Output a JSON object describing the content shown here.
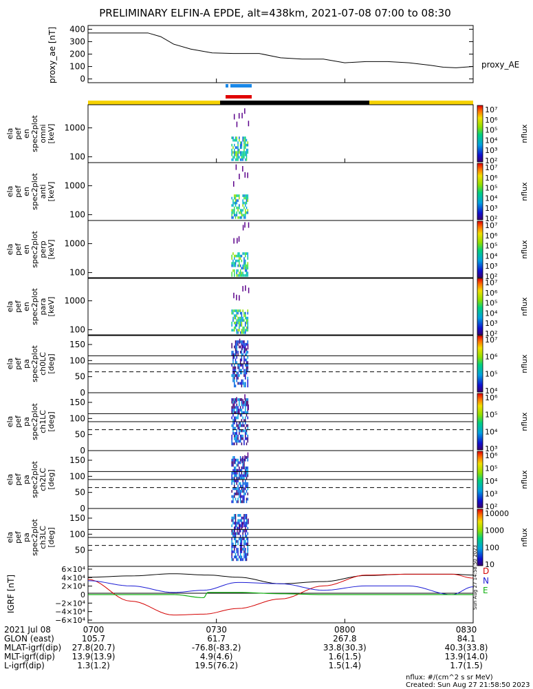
{
  "title": "PRELIMINARY ELFIN-A EPDE, alt=438km, 2021-07-08 07:00 to 08:30",
  "ae_panel": {
    "ylabel": "proxy_ae\n[nT]",
    "series_label": "proxy_AE",
    "yticks": [
      "400",
      "300",
      "200",
      "100",
      "0"
    ]
  },
  "spec_panels": [
    {
      "ylabel": [
        "ela",
        "pef",
        "en",
        "spec2plot",
        "omni",
        "[keV]"
      ],
      "yticks": [
        "1000",
        "100"
      ],
      "zticks": [
        "10⁷",
        "10⁶",
        "10⁵",
        "10⁴",
        "10³",
        "10²"
      ],
      "zlabel": "nflux"
    },
    {
      "ylabel": [
        "ela",
        "pef",
        "en",
        "spec2plot",
        "anti",
        "[keV]"
      ],
      "yticks": [
        "1000",
        "100"
      ],
      "zticks": [
        "10⁷",
        "10⁶",
        "10⁵",
        "10⁴",
        "10³",
        "10²"
      ],
      "zlabel": "nflux"
    },
    {
      "ylabel": [
        "ela",
        "pef",
        "en",
        "spec2plot",
        "perp",
        "[keV]"
      ],
      "yticks": [
        "1000",
        "100"
      ],
      "zticks": [
        "10⁷",
        "10⁶",
        "10⁵",
        "10⁴",
        "10³",
        "10²"
      ],
      "zlabel": "nflux"
    },
    {
      "ylabel": [
        "ela",
        "pef",
        "en",
        "spec2plot",
        "para",
        "[keV]"
      ],
      "yticks": [
        "1000",
        "100"
      ],
      "zticks": [
        "10⁷",
        "10⁶",
        "10⁵",
        "10⁴",
        "10³",
        "10²"
      ],
      "zlabel": "nflux"
    },
    {
      "ylabel": [
        "ela",
        "pef",
        "pa",
        "spec2plot",
        "ch0LC",
        "[deg]"
      ],
      "yticks": [
        "150",
        "100",
        "50",
        "0"
      ],
      "zticks": [
        "10⁷",
        "10⁶",
        "10⁵",
        "10⁴"
      ],
      "zlabel": "nflux"
    },
    {
      "ylabel": [
        "ela",
        "pef",
        "pa",
        "spec2plot",
        "ch1LC",
        "[deg]"
      ],
      "yticks": [
        "150",
        "100",
        "50",
        "0"
      ],
      "zticks": [
        "10⁶",
        "10⁵",
        "10⁴",
        "10³"
      ],
      "zlabel": "nflux"
    },
    {
      "ylabel": [
        "ela",
        "pef",
        "pa",
        "spec2plot",
        "ch2LC",
        "[deg]"
      ],
      "yticks": [
        "150",
        "100",
        "50",
        "0"
      ],
      "zticks": [
        "10⁶",
        "10⁵",
        "10⁴",
        "10³",
        "10²"
      ],
      "zlabel": "nflux"
    },
    {
      "ylabel": [
        "ela",
        "pef",
        "pa",
        "spec2plot",
        "ch3LC",
        "[deg]"
      ],
      "yticks": [
        "150",
        "100",
        "50"
      ],
      "zticks": [
        "10000",
        "1000",
        "100",
        "10"
      ],
      "zlabel": "nflux"
    }
  ],
  "igrf_panel": {
    "ylabel": "IGRF\n[nT]",
    "yticks": [
      "6×10⁴",
      "4×10⁴",
      "2×10⁴",
      "0",
      "−2×10⁴",
      "−4×10⁴",
      "−6×10⁴"
    ],
    "legend": [
      {
        "name": "D",
        "color": "#d40000"
      },
      {
        "name": "N",
        "color": "#1a1ad4"
      },
      {
        "name": "E",
        "color": "#10b010"
      }
    ]
  },
  "chart_data": {
    "type": "line",
    "x_ticks": [
      "0700",
      "0730",
      "0800",
      "0830"
    ],
    "proxy_ae": {
      "time_min": [
        0,
        5,
        10,
        14,
        17,
        20,
        24,
        29,
        34,
        40,
        45,
        50,
        55,
        60,
        65,
        70,
        75,
        80,
        83,
        86,
        90
      ],
      "values": [
        370,
        370,
        370,
        370,
        340,
        280,
        240,
        210,
        205,
        205,
        170,
        160,
        160,
        130,
        140,
        140,
        130,
        110,
        95,
        90,
        100
      ]
    },
    "igrf": {
      "D": {
        "time_min": [
          0,
          10,
          20,
          27,
          35,
          45,
          55,
          65,
          75,
          85,
          90
        ],
        "values": [
          35000,
          -15000,
          -47000,
          -45000,
          -32000,
          -10000,
          20000,
          45000,
          47000,
          47000,
          38000
        ]
      },
      "N": {
        "time_min": [
          0,
          10,
          20,
          27,
          35,
          45,
          55,
          65,
          75,
          85,
          90
        ],
        "values": [
          32000,
          20000,
          5000,
          10000,
          28000,
          25000,
          10000,
          20000,
          20000,
          0,
          18000
        ]
      },
      "E": {
        "time_min": [
          0,
          10,
          20,
          27,
          28,
          35,
          45,
          55,
          65,
          75,
          90
        ],
        "values": [
          0,
          0,
          0,
          -7000,
          5000,
          5000,
          2000,
          0,
          0,
          0,
          0
        ]
      },
      "total": {
        "time_min": [
          0,
          10,
          20,
          28,
          35,
          45,
          55,
          65,
          75,
          85,
          90
        ],
        "values": [
          40000,
          43000,
          48000,
          45000,
          40000,
          25000,
          30000,
          44000,
          47000,
          47000,
          45000
        ]
      }
    },
    "burst_x_min": 33.5,
    "burst_width_min": 4
  },
  "footer": {
    "rows": [
      {
        "label": "2021 Jul 08",
        "vals": [
          "0700",
          "0730",
          "0800",
          "0830"
        ]
      },
      {
        "label": "GLON (east)",
        "vals": [
          "105.7",
          "61.7",
          "267.8",
          "84.1"
        ]
      },
      {
        "label": "MLAT-igrf(dip)",
        "vals": [
          "27.8(20.7)",
          "-76.8(-83.2)",
          "33.8(30.3)",
          "40.3(33.8)"
        ]
      },
      {
        "label": "MLT-igrf(dip)",
        "vals": [
          "13.9(13.9)",
          "4.9(4.6)",
          "1.6(1.5)",
          "13.9(14.0)"
        ]
      },
      {
        "label": "L-igrf(dip)",
        "vals": [
          "1.3(1.2)",
          "19.5(76.2)",
          "1.5(1.4)",
          "1.7(1.5)"
        ]
      }
    ],
    "units_note": "nflux: #/(cm^2 s sr MeV)",
    "created": "Created: Sun Aug 27 21:58:50 2023",
    "side_stamp": "Sun Aug 27 14:58:50 2023"
  }
}
